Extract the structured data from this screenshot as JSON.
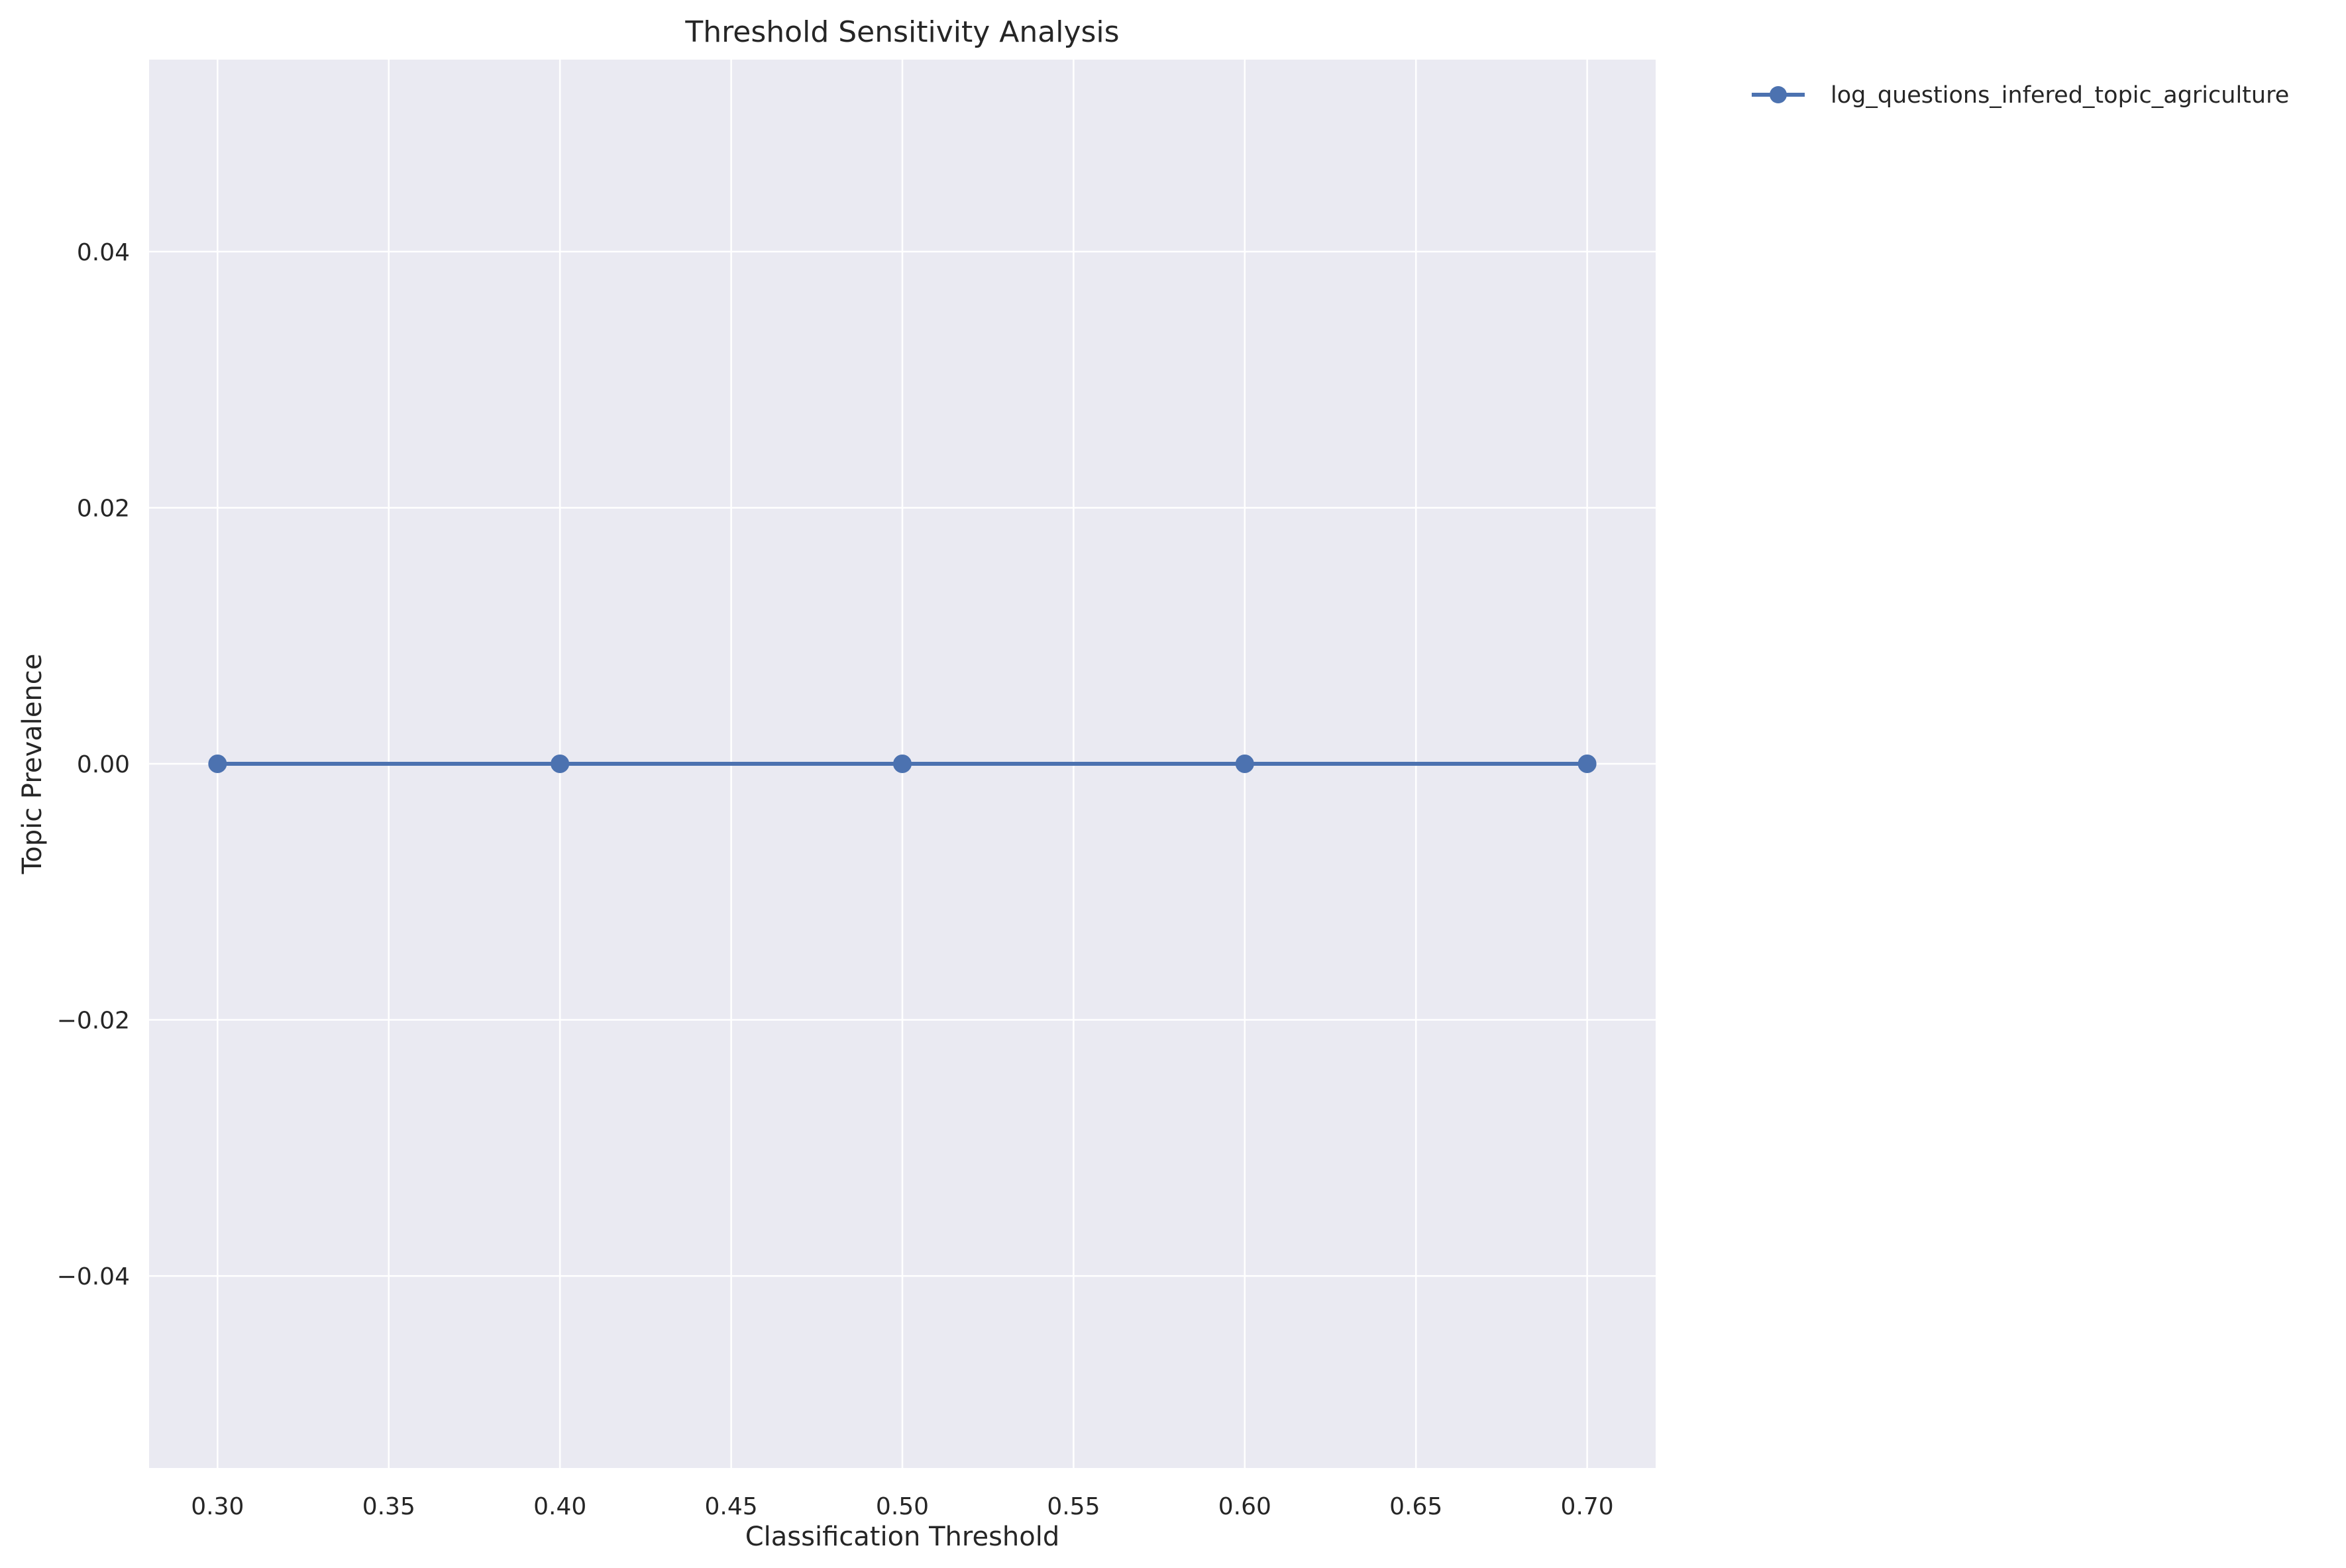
{
  "chart_data": {
    "type": "line",
    "title": "Threshold Sensitivity Analysis",
    "xlabel": "Classification Threshold",
    "ylabel": "Topic Prevalence",
    "x": [
      0.3,
      0.4,
      0.5,
      0.6,
      0.7
    ],
    "series": [
      {
        "name": "log_questions_infered_topic_agriculture",
        "values": [
          0.0,
          0.0,
          0.0,
          0.0,
          0.0
        ],
        "color": "#4c72b0",
        "marker": "circle"
      }
    ],
    "xlim": [
      0.28,
      0.72
    ],
    "ylim": [
      -0.055,
      0.055
    ],
    "xticks": [
      0.3,
      0.35,
      0.4,
      0.45,
      0.5,
      0.55,
      0.6,
      0.65,
      0.7
    ],
    "xtick_labels": [
      "0.30",
      "0.35",
      "0.40",
      "0.45",
      "0.50",
      "0.55",
      "0.60",
      "0.65",
      "0.70"
    ],
    "yticks": [
      -0.04,
      -0.02,
      0.0,
      0.02,
      0.04
    ],
    "ytick_labels": [
      "−0.04",
      "−0.02",
      "0.00",
      "0.02",
      "0.04"
    ],
    "grid": true,
    "legend_position": "outside-top-right",
    "colors": {
      "plot_background": "#eaeaf2",
      "grid": "#ffffff",
      "series": "#4c72b0"
    }
  }
}
